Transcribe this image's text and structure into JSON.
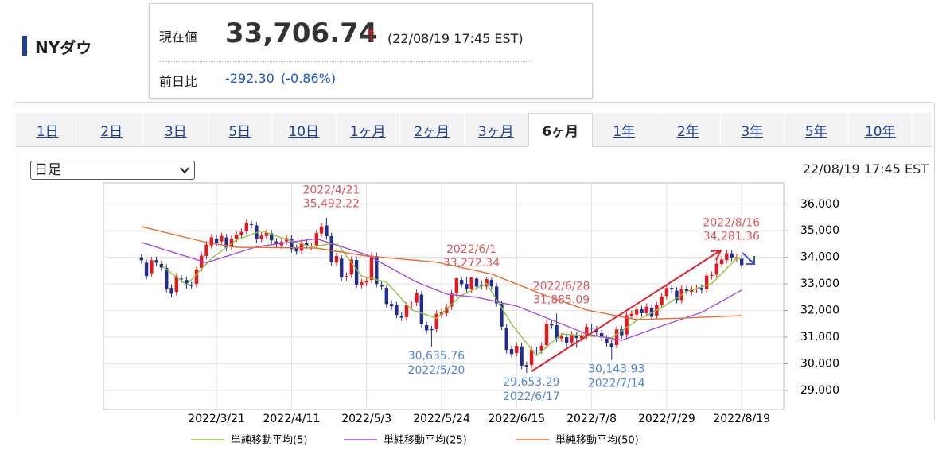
{
  "header": {
    "title": "NYダウ",
    "price_label": "現在値",
    "price": "33,706.74",
    "arrow": "↑",
    "timestamp": "(22/08/19 17:45 EST)",
    "change_label": "前日比",
    "change": "-292.30",
    "change_pct": "(-0.86%)"
  },
  "tabs": {
    "items": [
      "1日",
      "2日",
      "3日",
      "5日",
      "10日",
      "1ヶ月",
      "2ヶ月",
      "3ヶ月",
      "6ヶ月",
      "1年",
      "2年",
      "3年",
      "5年",
      "10年"
    ],
    "active": 8
  },
  "select": "日足",
  "chart_timestamp": "22/08/19 17:45 EST",
  "chart_data": {
    "type": "candlestick",
    "up_color": "#e8161d",
    "down_color": "#1f2e8c",
    "open": [
      34000,
      33800,
      33400,
      33900,
      33750,
      33600,
      32850,
      32700,
      33200,
      33150,
      32950,
      33000,
      33600,
      34050,
      34450,
      34700,
      34600,
      34750,
      34400,
      34700,
      34850,
      35000,
      35250,
      35200,
      34700,
      34800,
      34900,
      34600,
      34450,
      34600,
      34700,
      34350,
      34250,
      34550,
      34400,
      34450,
      34900,
      35200,
      34800,
      33800,
      33950,
      33250,
      33350,
      33900,
      32950,
      33050,
      33150,
      34050,
      32950,
      32850,
      32250,
      32200,
      31800,
      31750,
      32200,
      32300,
      32600,
      31450,
      31300,
      31300,
      31850,
      31900,
      32150,
      32650,
      33150,
      33000,
      32800,
      33200,
      32950,
      32900,
      33150,
      32900,
      32250,
      31350,
      30550,
      30400,
      30650,
      29950,
      29950,
      30500,
      30500,
      30700,
      31500,
      31450,
      30950,
      31000,
      30800,
      31050,
      30950,
      31050,
      31350,
      31300,
      31150,
      30950,
      30750,
      30700,
      31300,
      31100,
      31800,
      31850,
      32050,
      31900,
      32100,
      31800,
      32200,
      32550,
      32850,
      32750,
      32400,
      32800,
      32700,
      32800,
      32850,
      32800,
      33300,
      33350,
      33750,
      33900,
      34150,
      33950,
      33950
    ],
    "high": [
      34130,
      33930,
      34021,
      34030,
      33880,
      33730,
      32980,
      33416,
      33330,
      33280,
      33080,
      33674,
      34193,
      34611,
      34885,
      34830,
      34938,
      34880,
      34838,
      34992,
      35085,
      35424,
      35380,
      35330,
      34948,
      35052,
      35030,
      34730,
      34714,
      34851,
      34830,
      34480,
      34695,
      34680,
      34542,
      35042,
      35291,
      35492.22,
      34930,
      34180,
      34080,
      33432,
      34046,
      34030,
      33192,
      33259,
      34191,
      34180,
      33080,
      32980,
      32380,
      32330,
      31930,
      32327,
      32353,
      32785,
      32730,
      31580,
      31430,
      32010,
      32059,
      32251,
      32767,
      33230,
      33250,
      33272.34,
      33260,
      33250,
      33130,
      33250,
      33240,
      33030,
      32380,
      31480,
      30680,
      30799,
      30780,
      30080,
      30660,
      30630,
      30807,
      31631,
      31630,
      31885.09,
      31159,
      31130,
      31227,
      31180,
      31167,
      31515,
      31480,
      31430,
      31280,
      31080,
      30880,
      31419,
      31430,
      31958,
      32005,
      32166,
      32180,
      32275,
      32230,
      32328,
      32659,
      32975,
      32980,
      32880,
      32943,
      32930,
      32933,
      32963,
      32980,
      33440,
      33467,
      33891,
      34043,
      34281.36,
      34270,
      34129,
      34080
    ],
    "low": [
      33762,
      33165,
      33270,
      33665,
      33485,
      32688,
      32503,
      32570,
      33044,
      32814,
      32815,
      32870,
      33470,
      33920,
      34320,
      34423,
      34470,
      34228,
      34270,
      34570,
      34720,
      34870,
      35099,
      34548,
      34570,
      34670,
      34511,
      34367,
      34320,
      34470,
      34179,
      34091,
      34120,
      34322,
      34270,
      34320,
      34770,
      34663,
      33681,
      33670,
      33111,
      33120,
      33220,
      32847,
      32820,
      32920,
      33020,
      32868,
      32770,
      32116,
      32031,
      31704,
      31600,
      31620,
      32070,
      32170,
      31360,
      31123,
      30635.76,
      31170,
      31720,
      31770,
      32020,
      32520,
      32860,
      32683,
      32670,
      32770,
      32786,
      32770,
      32780,
      32143,
      31263,
      30387,
      30235,
      30270,
      29797,
      29653.29,
      29820,
      30353,
      30370,
      30570,
      31309,
      30817,
      30820,
      30645,
      30670,
      30600,
      30820,
      30920,
      31208,
      31044,
      30852,
      30643,
      30143.93,
      30570,
      30943,
      30970,
      31670,
      31720,
      31769,
      31770,
      31632,
      31670,
      32070,
      32420,
      32668,
      32267,
      32270,
      32597,
      32570,
      32670,
      32645,
      32670,
      33170,
      33220,
      33620,
      33770,
      33851,
      33820,
      33576
    ],
    "close": [
      33892,
      33295,
      33891,
      33795,
      33615,
      32818,
      32633,
      33286,
      33174,
      32944,
      32945,
      33544,
      34063,
      34481,
      34755,
      34553,
      34808,
      34358,
      34708,
      34862,
      34955,
      35294,
      35229,
      34678,
      34818,
      34922,
      34641,
      34497,
      34584,
      34721,
      34309,
      34221,
      34565,
      34452,
      34412,
      34912,
      35161,
      34793,
      33811,
      34050,
      33241,
      33302,
      33916,
      32977,
      33062,
      33129,
      34061,
      32998,
      32900,
      32246,
      32161,
      31834,
      31730,
      32197,
      32223,
      32655,
      31490,
      31253,
      31262,
      31880,
      31929,
      32121,
      32637,
      33213,
      32990,
      32813,
      33248,
      32900,
      32916,
      33180,
      32910,
      32273,
      31393,
      30517,
      30365,
      30669,
      29927,
      29889,
      30530,
      30483,
      30677,
      31501,
      31439,
      30947,
      31029,
      30775,
      31097,
      30968,
      31037,
      31385,
      31338,
      31174,
      30982,
      30773,
      30630,
      31289,
      31073,
      31828,
      31875,
      32036,
      31899,
      32145,
      31762,
      32198,
      32529,
      32845,
      32798,
      32397,
      32813,
      32727,
      32803,
      32833,
      32775,
      33310,
      33337,
      33761,
      33913,
      34152,
      33981,
      33999,
      33706.74
    ],
    "series": [
      {
        "name": "単純移動平均(5)",
        "color": "#8cc63f",
        "x": [
          4,
          9,
          14,
          19,
          24,
          29,
          34,
          39,
          44,
          49,
          54,
          59,
          64,
          69,
          74,
          79,
          84,
          89,
          94,
          99,
          104,
          109,
          114,
          119,
          120
        ],
        "values": [
          33698,
          32971,
          33958,
          34658,
          34995,
          34673,
          34392,
          34545,
          33300,
          33067,
          32029,
          31708,
          32578,
          33011,
          31492,
          30300,
          31119,
          31052,
          30979,
          31620,
          32107,
          32716,
          33012,
          33961,
          33950
        ]
      },
      {
        "name": "単純移動平均(25)",
        "color": "#a64be0",
        "x": [
          0,
          13,
          23,
          35,
          45,
          55,
          61,
          67,
          75,
          83,
          89,
          96,
          104,
          112,
          120
        ],
        "values": [
          34560,
          33800,
          34400,
          34700,
          34100,
          33070,
          32620,
          32500,
          32170,
          31570,
          31120,
          30880,
          31420,
          31930,
          32770
        ]
      },
      {
        "name": "単純移動平均(50)",
        "color": "#f06a2c",
        "x": [
          0,
          13,
          19,
          35,
          45,
          59,
          70,
          80,
          89,
          99,
          109,
          120
        ],
        "values": [
          35160,
          34560,
          34380,
          34350,
          34050,
          33820,
          33370,
          32620,
          32020,
          31660,
          31720,
          31810
        ]
      }
    ],
    "annotations": [
      {
        "date": "2022/4/21",
        "at": 37,
        "price": {
          "value": 35492.22,
          "label": "35,492.22"
        }
      },
      {
        "date": "2022/5/20",
        "at": 58,
        "price": {
          "value": 30635.76,
          "label": "30,635.76"
        }
      },
      {
        "date": "2022/6/1",
        "at": 65,
        "price": {
          "value": 33272.34,
          "label": "33,272.34"
        }
      },
      {
        "date": "2022/6/17",
        "at": 77,
        "price": {
          "value": 29653.29,
          "label": "29,653.29"
        }
      },
      {
        "date": "2022/6/28",
        "at": 83,
        "price": {
          "value": 31885.09,
          "label": "31,885.09"
        }
      },
      {
        "date": "2022/7/14",
        "at": 94,
        "price": {
          "value": 30143.93,
          "label": "30,143.93"
        }
      },
      {
        "date": "2022/8/16",
        "at": 117,
        "price": {
          "value": 34281.36,
          "label": "34,281.36"
        }
      }
    ],
    "high_label_color": "#e0575b",
    "low_label_color": "#4f86e0",
    "xlim": [
      -7.6,
      128.4
    ],
    "xticks": [
      {
        "value": 15,
        "label": "2022/3/21"
      },
      {
        "value": 30,
        "label": "2022/4/11"
      },
      {
        "value": 45,
        "label": "2022/5/3"
      },
      {
        "value": 60,
        "label": "2022/5/24"
      },
      {
        "value": 75,
        "label": "2022/6/15"
      },
      {
        "value": 90,
        "label": "2022/7/8"
      },
      {
        "value": 105,
        "label": "2022/7/29"
      },
      {
        "value": 120,
        "label": "2022/8/19"
      }
    ],
    "ylim": [
      28280,
      36800
    ],
    "yticks": [
      {
        "value": 29000,
        "label": "29,000"
      },
      {
        "value": 30000,
        "label": "30,000"
      },
      {
        "value": 31000,
        "label": "31,000"
      },
      {
        "value": 32000,
        "label": "32,000"
      },
      {
        "value": 33000,
        "label": "33,000"
      },
      {
        "value": 34000,
        "label": "34,000"
      },
      {
        "value": 35000,
        "label": "35,000"
      },
      {
        "value": 36000,
        "label": "36,000"
      }
    ],
    "grid": true
  }
}
